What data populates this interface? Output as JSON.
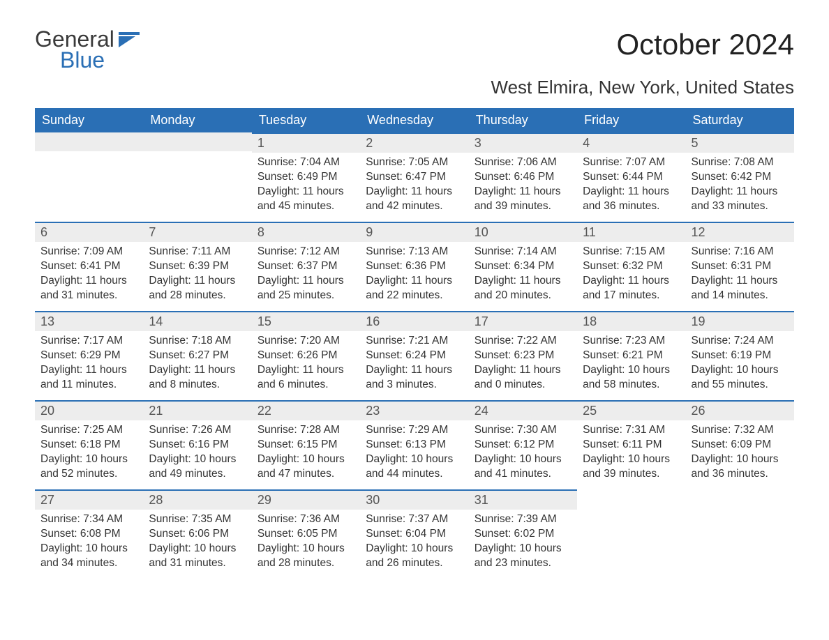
{
  "logo": {
    "word1": "General",
    "word2": "Blue",
    "flag_color": "#2a6fb5"
  },
  "title": "October 2024",
  "location": "West Elmira, New York, United States",
  "colors": {
    "header_bg": "#2a6fb5",
    "header_text": "#ffffff",
    "daynum_bg": "#ededed",
    "daynum_border": "#2a6fb5",
    "body_text": "#333333",
    "background": "#ffffff"
  },
  "fonts": {
    "title_size_pt": 32,
    "location_size_pt": 20,
    "header_size_pt": 14,
    "daynum_size_pt": 14,
    "body_size_pt": 12
  },
  "weekdays": [
    "Sunday",
    "Monday",
    "Tuesday",
    "Wednesday",
    "Thursday",
    "Friday",
    "Saturday"
  ],
  "labels": {
    "sunrise": "Sunrise:",
    "sunset": "Sunset:",
    "daylight": "Daylight:"
  },
  "weeks": [
    [
      null,
      null,
      {
        "n": "1",
        "sunrise": "7:04 AM",
        "sunset": "6:49 PM",
        "daylight": "11 hours and 45 minutes."
      },
      {
        "n": "2",
        "sunrise": "7:05 AM",
        "sunset": "6:47 PM",
        "daylight": "11 hours and 42 minutes."
      },
      {
        "n": "3",
        "sunrise": "7:06 AM",
        "sunset": "6:46 PM",
        "daylight": "11 hours and 39 minutes."
      },
      {
        "n": "4",
        "sunrise": "7:07 AM",
        "sunset": "6:44 PM",
        "daylight": "11 hours and 36 minutes."
      },
      {
        "n": "5",
        "sunrise": "7:08 AM",
        "sunset": "6:42 PM",
        "daylight": "11 hours and 33 minutes."
      }
    ],
    [
      {
        "n": "6",
        "sunrise": "7:09 AM",
        "sunset": "6:41 PM",
        "daylight": "11 hours and 31 minutes."
      },
      {
        "n": "7",
        "sunrise": "7:11 AM",
        "sunset": "6:39 PM",
        "daylight": "11 hours and 28 minutes."
      },
      {
        "n": "8",
        "sunrise": "7:12 AM",
        "sunset": "6:37 PM",
        "daylight": "11 hours and 25 minutes."
      },
      {
        "n": "9",
        "sunrise": "7:13 AM",
        "sunset": "6:36 PM",
        "daylight": "11 hours and 22 minutes."
      },
      {
        "n": "10",
        "sunrise": "7:14 AM",
        "sunset": "6:34 PM",
        "daylight": "11 hours and 20 minutes."
      },
      {
        "n": "11",
        "sunrise": "7:15 AM",
        "sunset": "6:32 PM",
        "daylight": "11 hours and 17 minutes."
      },
      {
        "n": "12",
        "sunrise": "7:16 AM",
        "sunset": "6:31 PM",
        "daylight": "11 hours and 14 minutes."
      }
    ],
    [
      {
        "n": "13",
        "sunrise": "7:17 AM",
        "sunset": "6:29 PM",
        "daylight": "11 hours and 11 minutes."
      },
      {
        "n": "14",
        "sunrise": "7:18 AM",
        "sunset": "6:27 PM",
        "daylight": "11 hours and 8 minutes."
      },
      {
        "n": "15",
        "sunrise": "7:20 AM",
        "sunset": "6:26 PM",
        "daylight": "11 hours and 6 minutes."
      },
      {
        "n": "16",
        "sunrise": "7:21 AM",
        "sunset": "6:24 PM",
        "daylight": "11 hours and 3 minutes."
      },
      {
        "n": "17",
        "sunrise": "7:22 AM",
        "sunset": "6:23 PM",
        "daylight": "11 hours and 0 minutes."
      },
      {
        "n": "18",
        "sunrise": "7:23 AM",
        "sunset": "6:21 PM",
        "daylight": "10 hours and 58 minutes."
      },
      {
        "n": "19",
        "sunrise": "7:24 AM",
        "sunset": "6:19 PM",
        "daylight": "10 hours and 55 minutes."
      }
    ],
    [
      {
        "n": "20",
        "sunrise": "7:25 AM",
        "sunset": "6:18 PM",
        "daylight": "10 hours and 52 minutes."
      },
      {
        "n": "21",
        "sunrise": "7:26 AM",
        "sunset": "6:16 PM",
        "daylight": "10 hours and 49 minutes."
      },
      {
        "n": "22",
        "sunrise": "7:28 AM",
        "sunset": "6:15 PM",
        "daylight": "10 hours and 47 minutes."
      },
      {
        "n": "23",
        "sunrise": "7:29 AM",
        "sunset": "6:13 PM",
        "daylight": "10 hours and 44 minutes."
      },
      {
        "n": "24",
        "sunrise": "7:30 AM",
        "sunset": "6:12 PM",
        "daylight": "10 hours and 41 minutes."
      },
      {
        "n": "25",
        "sunrise": "7:31 AM",
        "sunset": "6:11 PM",
        "daylight": "10 hours and 39 minutes."
      },
      {
        "n": "26",
        "sunrise": "7:32 AM",
        "sunset": "6:09 PM",
        "daylight": "10 hours and 36 minutes."
      }
    ],
    [
      {
        "n": "27",
        "sunrise": "7:34 AM",
        "sunset": "6:08 PM",
        "daylight": "10 hours and 34 minutes."
      },
      {
        "n": "28",
        "sunrise": "7:35 AM",
        "sunset": "6:06 PM",
        "daylight": "10 hours and 31 minutes."
      },
      {
        "n": "29",
        "sunrise": "7:36 AM",
        "sunset": "6:05 PM",
        "daylight": "10 hours and 28 minutes."
      },
      {
        "n": "30",
        "sunrise": "7:37 AM",
        "sunset": "6:04 PM",
        "daylight": "10 hours and 26 minutes."
      },
      {
        "n": "31",
        "sunrise": "7:39 AM",
        "sunset": "6:02 PM",
        "daylight": "10 hours and 23 minutes."
      },
      null,
      null
    ]
  ]
}
